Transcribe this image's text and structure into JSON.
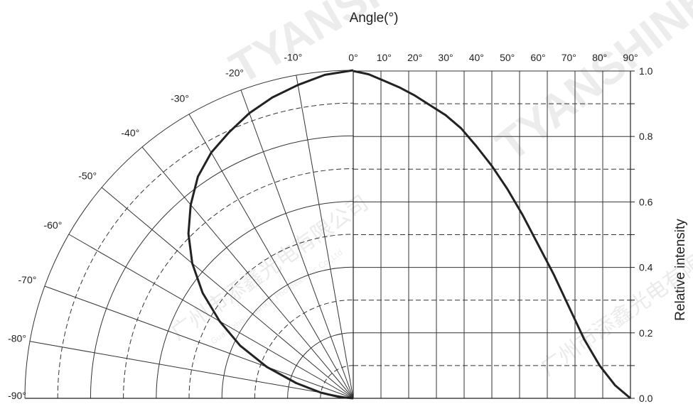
{
  "chart_data": {
    "type": "line",
    "subtype": "polar-and-cartesian radiation pattern",
    "title": "",
    "xlabel": "Angle(°)",
    "ylabel": "Relative  intensity",
    "x_ticks": [
      "0°",
      "10°",
      "20°",
      "30°",
      "40°",
      "50°",
      "60°",
      "70°",
      "80°",
      "90°"
    ],
    "y_ticks": [
      "0.0",
      "0.2",
      "0.4",
      "0.6",
      "0.8",
      "1.0"
    ],
    "polar_ticks": [
      "-10°",
      "-20°",
      "-30°",
      "-40°",
      "-50°",
      "-60°",
      "-70°",
      "-80°",
      "-90°"
    ],
    "xlim": [
      0,
      90
    ],
    "ylim": [
      0,
      1
    ],
    "grid": true,
    "line_color": "#222222",
    "grid_color": "#333333",
    "series": [
      {
        "x": [
          0,
          5,
          10,
          15,
          20,
          25,
          30,
          35,
          40,
          45,
          50,
          55,
          60,
          65,
          70,
          75,
          80,
          85,
          90
        ],
        "values": [
          1.0,
          0.99,
          0.97,
          0.95,
          0.925,
          0.895,
          0.865,
          0.825,
          0.77,
          0.71,
          0.64,
          0.56,
          0.47,
          0.38,
          0.28,
          0.18,
          0.1,
          0.04,
          0.0
        ]
      }
    ]
  },
  "watermark": {
    "brand": "TYANSHINE",
    "chinese": "广州市添鑫光电有限公司",
    "english": "Guangzhou Tianxin Photoelectric Co.,Ltd"
  }
}
